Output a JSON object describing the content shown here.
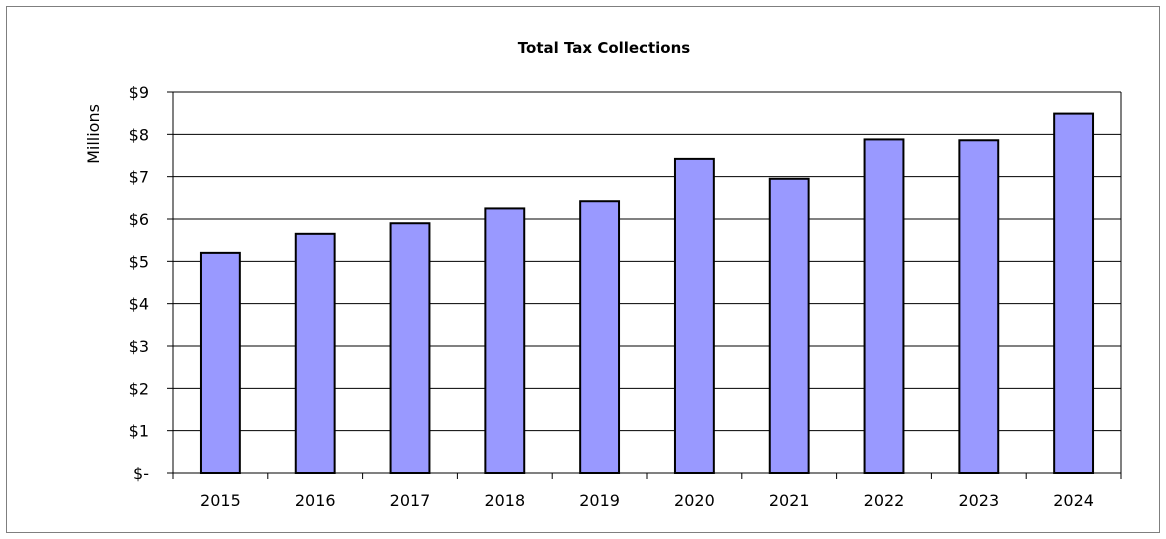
{
  "chart_data": {
    "type": "bar",
    "title": "Total Tax Collections",
    "ylabel": "Millions",
    "xlabel": "",
    "categories": [
      "2015",
      "2016",
      "2017",
      "2018",
      "2019",
      "2020",
      "2021",
      "2022",
      "2023",
      "2024"
    ],
    "values": [
      5.2,
      5.65,
      5.9,
      6.25,
      6.42,
      7.42,
      6.95,
      7.88,
      7.86,
      8.49
    ],
    "ylim": [
      0,
      9
    ],
    "yticks": [
      0,
      1,
      2,
      3,
      4,
      5,
      6,
      7,
      8,
      9
    ],
    "ytick_labels": [
      "$-",
      "$1",
      "$2",
      "$3",
      "$4",
      "$5",
      "$6",
      "$7",
      "$8",
      "$9"
    ],
    "grid": true,
    "legend": "none",
    "bar_color": "#9999ff",
    "bar_edge_color": "#000000"
  }
}
